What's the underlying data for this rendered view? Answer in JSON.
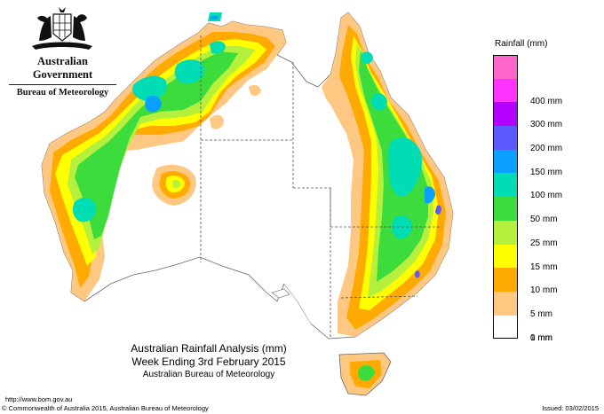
{
  "header": {
    "org_name": "Australian Government",
    "agency_name": "Bureau of Meteorology"
  },
  "legend": {
    "title": "Rainfall (mm)",
    "items": [
      {
        "label": "",
        "color": "#ff66cc"
      },
      {
        "label": "400 mm",
        "color": "#ff33ff"
      },
      {
        "label": "300 mm",
        "color": "#b400ff"
      },
      {
        "label": "200 mm",
        "color": "#5a5aff"
      },
      {
        "label": "150 mm",
        "color": "#0aa0ff"
      },
      {
        "label": "100 mm",
        "color": "#00dcb4"
      },
      {
        "label": "50 mm",
        "color": "#3cdc3c"
      },
      {
        "label": "25 mm",
        "color": "#b4f03c"
      },
      {
        "label": "15 mm",
        "color": "#ffff00"
      },
      {
        "label": "10 mm",
        "color": "#ffaa00"
      },
      {
        "label": "5 mm",
        "color": "#ffc882"
      },
      {
        "label": "1 mm",
        "color": "#ffffff"
      },
      {
        "label": "0 mm",
        "color": null
      }
    ]
  },
  "caption": {
    "line1": "Australian Rainfall Analysis (mm)",
    "line2": "Week Ending 3rd February 2015",
    "line3": "Australian Bureau of Meteorology"
  },
  "footer": {
    "url": "http://www.bom.gov.au",
    "copyright": "© Commonwealth of Australia 2015, Australian Bureau of Meteorology",
    "issued": "Issued: 03/02/2015"
  }
}
